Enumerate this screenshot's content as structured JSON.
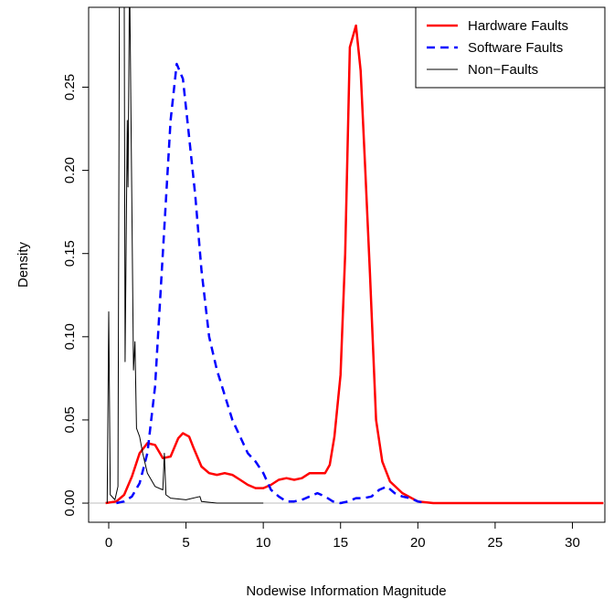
{
  "chart_data": {
    "type": "line",
    "xlabel": "Nodewise Information Magnitude",
    "ylabel": "Density",
    "xlim": [
      -1.3,
      32.1
    ],
    "ylim": [
      -0.0115,
      0.298
    ],
    "xticks": [
      0,
      5,
      10,
      15,
      20,
      25,
      30
    ],
    "yticks": [
      {
        "value": 0,
        "label": "0.00"
      },
      {
        "value": 0.05,
        "label": "0.05"
      },
      {
        "value": 0.1,
        "label": "0.10"
      },
      {
        "value": 0.15,
        "label": "0.15"
      },
      {
        "value": 0.2,
        "label": "0.20"
      },
      {
        "value": 0.25,
        "label": "0.25"
      }
    ],
    "legend": "top-right",
    "series": [
      {
        "name": "Hardware Faults",
        "color": "#ff0000",
        "dash": "solid",
        "width": 2.5,
        "x": [
          -0.2,
          0.5,
          1,
          1.5,
          2,
          2.5,
          3,
          3.5,
          4,
          4.5,
          4.8,
          5.2,
          5.5,
          6,
          6.5,
          7,
          7.5,
          8,
          8.5,
          9,
          9.5,
          10,
          10.5,
          11,
          11.5,
          12,
          12.5,
          13,
          13.5,
          14,
          14.3,
          14.6,
          15,
          15.3,
          15.6,
          16,
          16.3,
          16.6,
          16.9,
          17.3,
          17.7,
          18.2,
          19,
          20,
          21,
          32
        ],
        "values": [
          0,
          0.001,
          0.005,
          0.016,
          0.03,
          0.036,
          0.035,
          0.027,
          0.028,
          0.039,
          0.042,
          0.04,
          0.033,
          0.022,
          0.018,
          0.017,
          0.018,
          0.017,
          0.014,
          0.011,
          0.009,
          0.009,
          0.011,
          0.014,
          0.015,
          0.014,
          0.015,
          0.018,
          0.018,
          0.018,
          0.023,
          0.04,
          0.077,
          0.15,
          0.274,
          0.287,
          0.26,
          0.2,
          0.138,
          0.05,
          0.025,
          0.013,
          0.006,
          0.001,
          0,
          0
        ]
      },
      {
        "name": "Software Faults",
        "color": "#0000ff",
        "dash": "dashed",
        "width": 2.5,
        "x": [
          0.5,
          1,
          1.5,
          2,
          2.5,
          3,
          3.5,
          4,
          4.4,
          4.8,
          5.2,
          5.6,
          6,
          6.5,
          7,
          7.5,
          8,
          8.5,
          9,
          9.5,
          10,
          10.5,
          11,
          11.5,
          12,
          12.5,
          13,
          13.5,
          14,
          14.5,
          15,
          15.5,
          16,
          16.5,
          17,
          17.5,
          18,
          18.5,
          19,
          19.5,
          20,
          20.5
        ],
        "values": [
          0,
          0.001,
          0.004,
          0.012,
          0.03,
          0.07,
          0.15,
          0.23,
          0.264,
          0.255,
          0.22,
          0.185,
          0.14,
          0.1,
          0.08,
          0.065,
          0.05,
          0.04,
          0.03,
          0.025,
          0.018,
          0.008,
          0.004,
          0.001,
          0.001,
          0.002,
          0.004,
          0.006,
          0.004,
          0.001,
          0,
          0.001,
          0.003,
          0.003,
          0.004,
          0.008,
          0.01,
          0.006,
          0.004,
          0.003,
          0.001,
          0
        ]
      },
      {
        "name": "Non−Faults",
        "color": "#000000",
        "dash": "solid",
        "width": 1,
        "x": [
          -0.1,
          0,
          0.1,
          0.4,
          0.6,
          0.7,
          0.85,
          1.0,
          1.06,
          1.2,
          1.25,
          1.35,
          1.6,
          1.7,
          1.8,
          2.0,
          2.2,
          2.5,
          3,
          3.5,
          3.6,
          3.7,
          4,
          5,
          5.9,
          6,
          7,
          10
        ],
        "values": [
          0,
          0.115,
          0.005,
          0.002,
          0.01,
          0.32,
          0.32,
          0.32,
          0.085,
          0.23,
          0.19,
          0.32,
          0.08,
          0.097,
          0.045,
          0.04,
          0.03,
          0.018,
          0.01,
          0.008,
          0.03,
          0.005,
          0.003,
          0.002,
          0.004,
          0.001,
          0,
          0
        ]
      }
    ]
  }
}
